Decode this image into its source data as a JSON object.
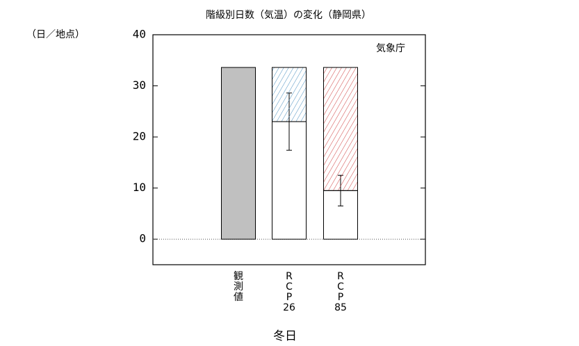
{
  "chart_data": {
    "type": "bar",
    "title": "階級別日数（気温）の変化（静岡県）",
    "y_label": "（日／地点）",
    "annotation": "気象庁",
    "x_label": "冬日",
    "categories": [
      "観測値",
      "RCP26",
      "RCP85"
    ],
    "series": [
      {
        "color": "#c0c0c0",
        "values": [
          33.6,
          null,
          null
        ]
      },
      {
        "color": "#ffffff",
        "values": [
          null,
          23.0,
          9.5
        ],
        "errors": [
          null,
          5.6,
          3.0
        ]
      },
      {
        "colors": [
          null,
          "#4a90c0",
          "#d04040"
        ],
        "values": [
          null,
          10.6,
          24.1
        ],
        "hatch": true
      }
    ],
    "ylim": [
      -5,
      40
    ],
    "yticks": [
      0,
      10,
      20,
      30,
      40
    ]
  }
}
